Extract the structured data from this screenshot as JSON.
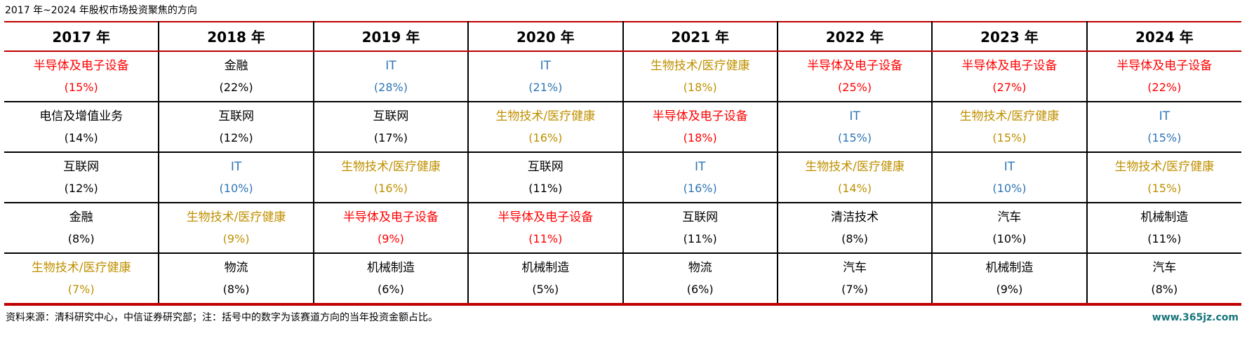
{
  "title": "2017 年~2024 年股权市场投资聚焦的方向",
  "colors": {
    "red": "#FF0000",
    "blue": "#2E75B6",
    "gold": "#BF9000",
    "black": "#000000",
    "rule_red": "#C00000",
    "watermark_teal": "#17757B"
  },
  "chart_data": {
    "type": "table",
    "title": "2017 年~2024 年股权市场投资聚焦的方向",
    "note": "括号中的数字为该赛道方向的当年投资金额占比",
    "columns": [
      {
        "header": "2017 年",
        "cells": [
          {
            "sector": "半导体及电子设备",
            "share": "(15%)",
            "color": "red"
          },
          {
            "sector": "电信及增值业务",
            "share": "(14%)",
            "color": "black"
          },
          {
            "sector": "互联网",
            "share": "(12%)",
            "color": "black"
          },
          {
            "sector": "金融",
            "share": "(8%)",
            "color": "black"
          },
          {
            "sector": "生物技术/医疗健康",
            "share": "(7%)",
            "color": "gold"
          }
        ]
      },
      {
        "header": "2018 年",
        "cells": [
          {
            "sector": "金融",
            "share": "(22%)",
            "color": "black"
          },
          {
            "sector": "互联网",
            "share": "(12%)",
            "color": "black"
          },
          {
            "sector": "IT",
            "share": "(10%)",
            "color": "blue"
          },
          {
            "sector": "生物技术/医疗健康",
            "share": "(9%)",
            "color": "gold"
          },
          {
            "sector": "物流",
            "share": "(8%)",
            "color": "black"
          }
        ]
      },
      {
        "header": "2019 年",
        "cells": [
          {
            "sector": "IT",
            "share": "(28%)",
            "color": "blue"
          },
          {
            "sector": "互联网",
            "share": "(17%)",
            "color": "black"
          },
          {
            "sector": "生物技术/医疗健康",
            "share": "(16%)",
            "color": "gold"
          },
          {
            "sector": "半导体及电子设备",
            "share": "(9%)",
            "color": "red"
          },
          {
            "sector": "机械制造",
            "share": "(6%)",
            "color": "black"
          }
        ]
      },
      {
        "header": "2020 年",
        "cells": [
          {
            "sector": "IT",
            "share": "(21%)",
            "color": "blue"
          },
          {
            "sector": "生物技术/医疗健康",
            "share": "(16%)",
            "color": "gold"
          },
          {
            "sector": "互联网",
            "share": "(11%)",
            "color": "black"
          },
          {
            "sector": "半导体及电子设备",
            "share": "(11%)",
            "color": "red"
          },
          {
            "sector": "机械制造",
            "share": "(5%)",
            "color": "black"
          }
        ]
      },
      {
        "header": "2021 年",
        "cells": [
          {
            "sector": "生物技术/医疗健康",
            "share": "(18%)",
            "color": "gold"
          },
          {
            "sector": "半导体及电子设备",
            "share": "(18%)",
            "color": "red"
          },
          {
            "sector": "IT",
            "share": "(16%)",
            "color": "blue"
          },
          {
            "sector": "互联网",
            "share": "(11%)",
            "color": "black"
          },
          {
            "sector": "物流",
            "share": "(6%)",
            "color": "black"
          }
        ]
      },
      {
        "header": "2022 年",
        "cells": [
          {
            "sector": "半导体及电子设备",
            "share": "(25%)",
            "color": "red"
          },
          {
            "sector": "IT",
            "share": "(15%)",
            "color": "blue"
          },
          {
            "sector": "生物技术/医疗健康",
            "share": "(14%)",
            "color": "gold"
          },
          {
            "sector": "清洁技术",
            "share": "(8%)",
            "color": "black"
          },
          {
            "sector": "汽车",
            "share": "(7%)",
            "color": "black"
          }
        ]
      },
      {
        "header": "2023 年",
        "cells": [
          {
            "sector": "半导体及电子设备",
            "share": "(27%)",
            "color": "red"
          },
          {
            "sector": "生物技术/医疗健康",
            "share": "(15%)",
            "color": "gold"
          },
          {
            "sector": "IT",
            "share": "(10%)",
            "color": "blue"
          },
          {
            "sector": "汽车",
            "share": "(10%)",
            "color": "black"
          },
          {
            "sector": "机械制造",
            "share": "(9%)",
            "color": "black"
          }
        ]
      },
      {
        "header": "2024 年",
        "cells": [
          {
            "sector": "半导体及电子设备",
            "share": "(22%)",
            "color": "red"
          },
          {
            "sector": "IT",
            "share": "(15%)",
            "color": "blue"
          },
          {
            "sector": "生物技术/医疗健康",
            "share": "(15%)",
            "color": "gold"
          },
          {
            "sector": "机械制造",
            "share": "(11%)",
            "color": "black"
          },
          {
            "sector": "汽车",
            "share": "(8%)",
            "color": "black"
          }
        ]
      }
    ]
  },
  "footer": {
    "source": "资料来源：清科研究中心，中信证券研究部；注：括号中的数字为该赛道方向的当年投资金额占比。",
    "watermark": "www.365jz.com"
  }
}
